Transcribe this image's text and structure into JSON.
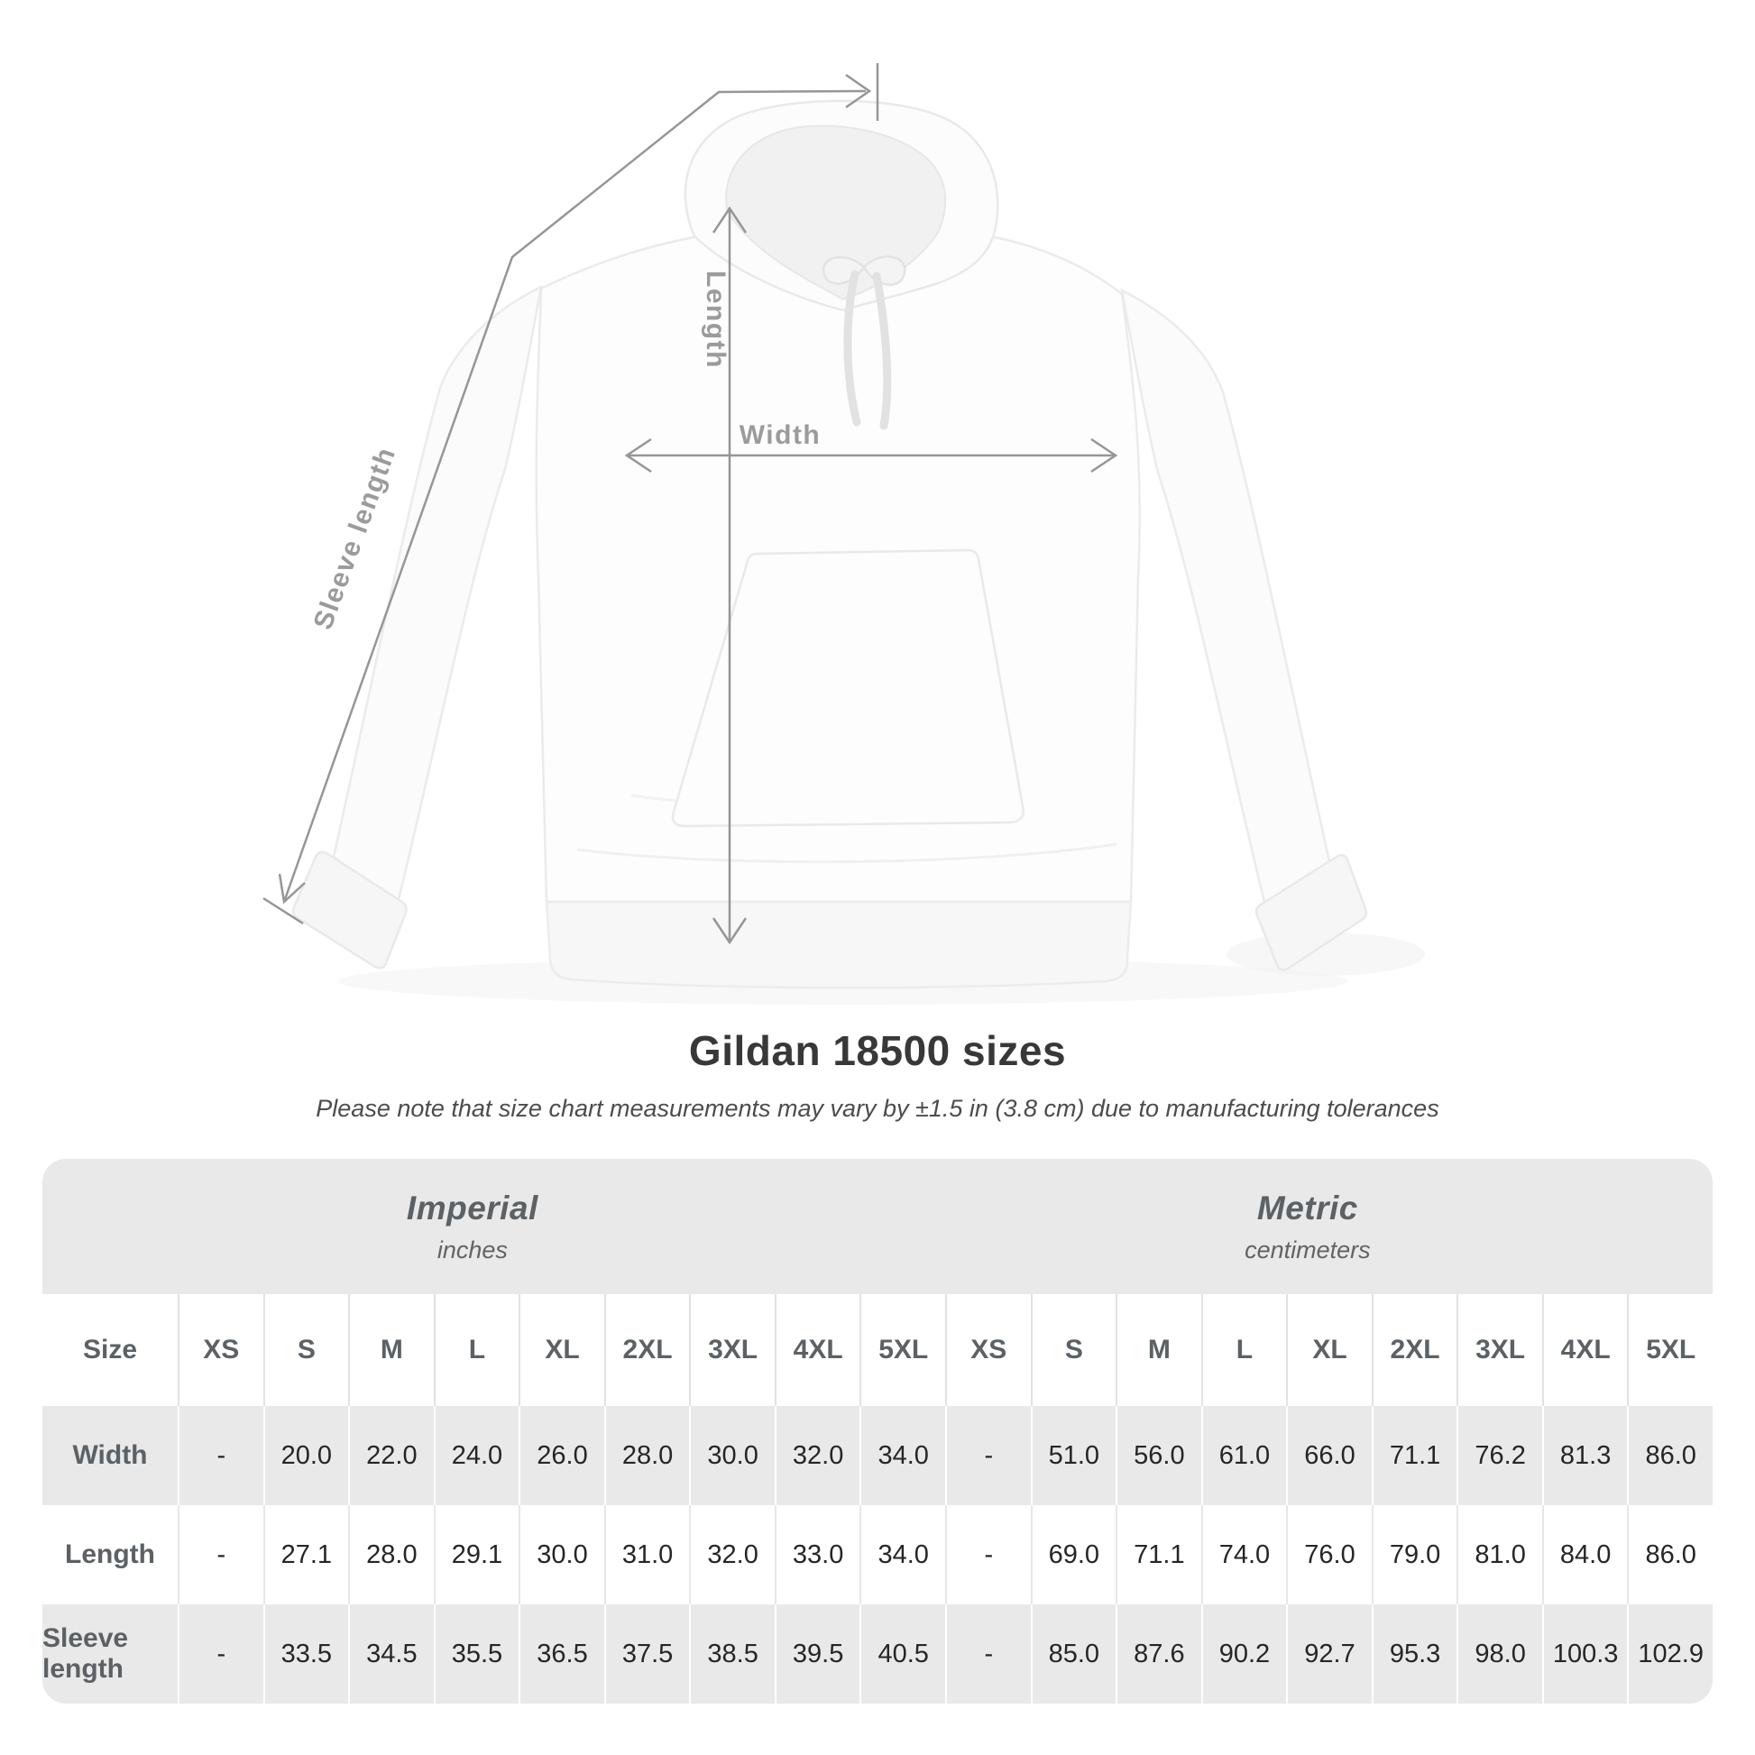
{
  "page": {
    "background": "#ffffff"
  },
  "diagram": {
    "labels": {
      "length": "Length",
      "width": "Width",
      "sleeve_length": "Sleeve length"
    },
    "annotation_color": "#969696"
  },
  "heading": {
    "title": "Gildan 18500 sizes",
    "subtitle": "Please note that size chart measurements may vary by ±1.5 in (3.8 cm) due to manufacturing tolerances"
  },
  "size_table": {
    "groups": [
      {
        "system": "Imperial",
        "unit": "inches"
      },
      {
        "system": "Metric",
        "unit": "centimeters"
      }
    ],
    "size_column_header": "Size",
    "sizes": [
      "XS",
      "S",
      "M",
      "L",
      "XL",
      "2XL",
      "3XL",
      "4XL",
      "5XL"
    ],
    "measurements": [
      {
        "label": "Width",
        "imperial": [
          "-",
          "20.0",
          "22.0",
          "24.0",
          "26.0",
          "28.0",
          "30.0",
          "32.0",
          "34.0"
        ],
        "metric": [
          "-",
          "51.0",
          "56.0",
          "61.0",
          "66.0",
          "71.1",
          "76.2",
          "81.3",
          "86.0"
        ]
      },
      {
        "label": "Length",
        "imperial": [
          "-",
          "27.1",
          "28.0",
          "29.1",
          "30.0",
          "31.0",
          "32.0",
          "33.0",
          "34.0"
        ],
        "metric": [
          "-",
          "69.0",
          "71.1",
          "74.0",
          "76.0",
          "79.0",
          "81.0",
          "84.0",
          "86.0"
        ]
      },
      {
        "label": "Sleeve length",
        "imperial": [
          "-",
          "33.5",
          "34.5",
          "35.5",
          "36.5",
          "37.5",
          "38.5",
          "39.5",
          "40.5"
        ],
        "metric": [
          "-",
          "85.0",
          "87.6",
          "90.2",
          "92.7",
          "95.3",
          "98.0",
          "100.3",
          "102.9"
        ]
      }
    ]
  },
  "colors": {
    "band_gray": "#e9e9e9",
    "header_text": "#5c6165",
    "value_text": "#262626",
    "annotation_gray": "#969696"
  }
}
